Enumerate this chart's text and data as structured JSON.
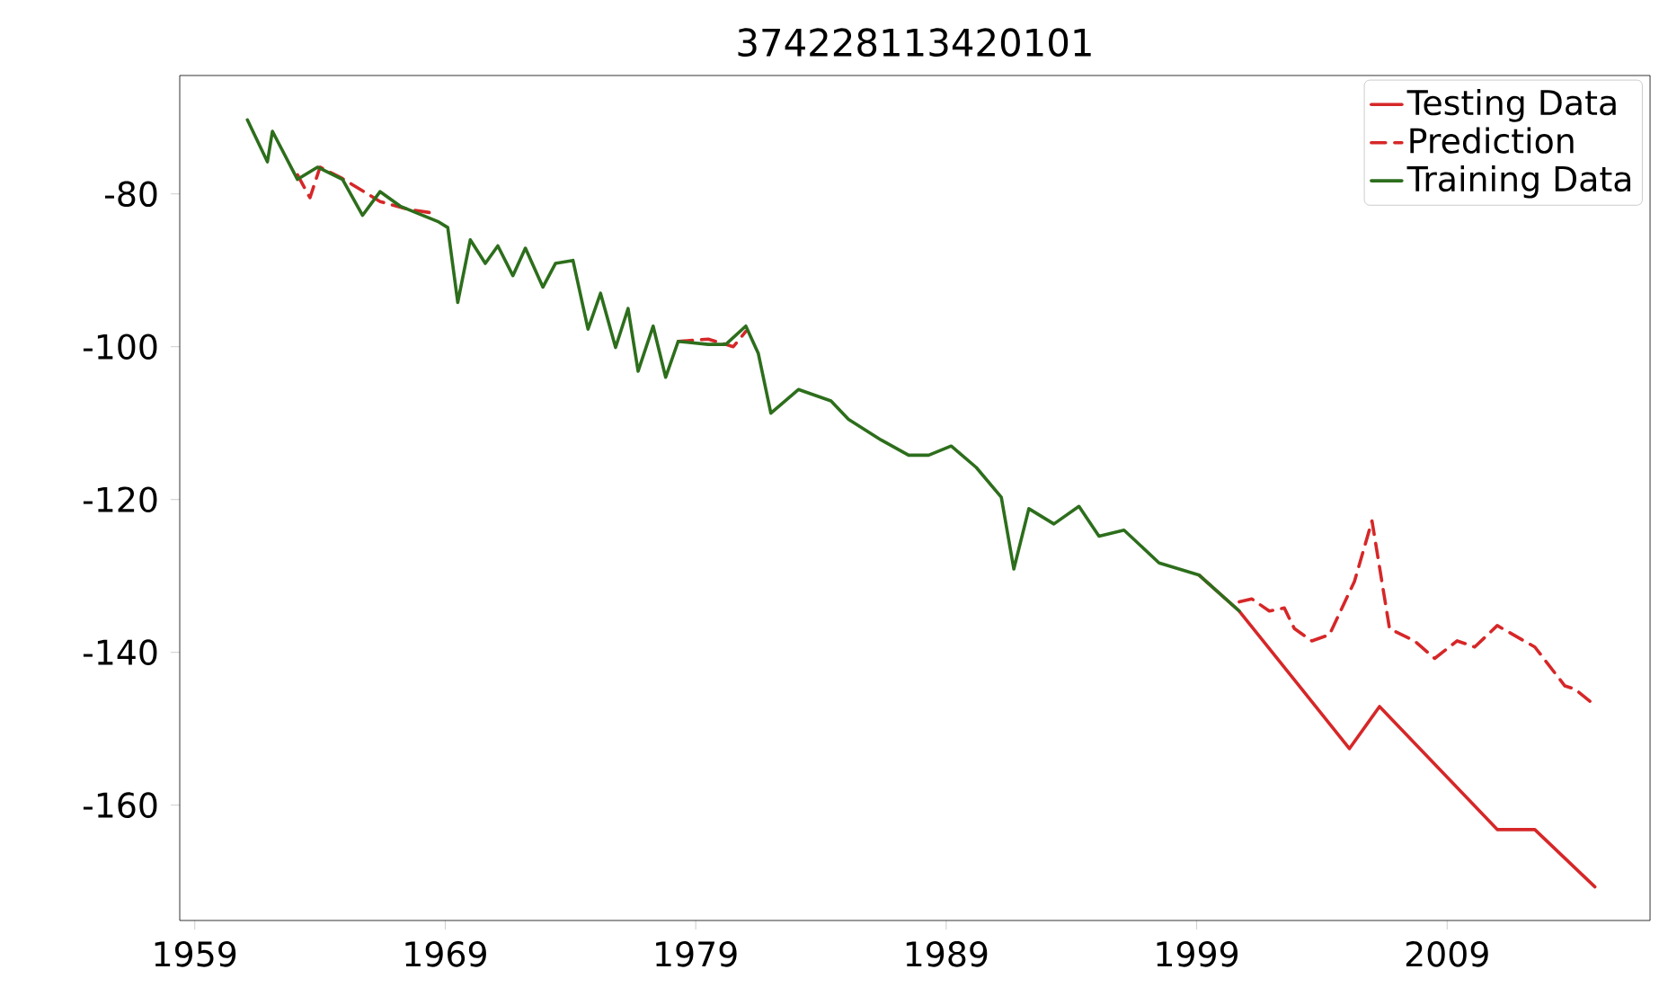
{
  "chart_data": {
    "type": "line",
    "title": "374228113420101",
    "xlim": [
      1958.4,
      2017.1
    ],
    "ylim": [
      -175.1,
      -64.5
    ],
    "xticks": [
      1959,
      1969,
      1979,
      1989,
      1999,
      2009
    ],
    "yticks": [
      -160,
      -140,
      -120,
      -100,
      -80
    ],
    "grid": false,
    "legend": "top right",
    "marker": "none",
    "series": [
      {
        "name": "Testing Data",
        "color": "#d62728",
        "line_style": "solid",
        "x": [
          1999.1,
          2000.7,
          2005.1,
          2006.3,
          2011.0,
          2012.5,
          2014.9
        ],
        "values": [
          -129.9,
          -134.6,
          -152.6,
          -147.1,
          -163.2,
          -163.2,
          -170.7
        ]
      },
      {
        "name": "Prediction",
        "color": "#d62728",
        "line_style": "dashed",
        "x": [
          1963.1,
          1963.6,
          1964.0,
          1964.9,
          1966.4,
          1967.5,
          1968.5,
          1973.0,
          1978.3,
          1979.5,
          1980.5,
          1981.0,
          1990.0,
          2000.7,
          2001.2,
          2001.9,
          2002.5,
          2002.9,
          2003.6,
          2004.3,
          2005.3,
          2006.0,
          2006.7,
          2007.7,
          2008.5,
          2009.4,
          2010.1,
          2011.0,
          2012.5,
          2013.7,
          2014.1,
          2014.7
        ],
        "values": [
          -77.5,
          -80.5,
          -76.5,
          -78.0,
          -81.0,
          -82.0,
          -82.5,
          null,
          -99.3,
          -99.0,
          -100.0,
          -98.0,
          null,
          -133.4,
          -133.0,
          -134.6,
          -134.2,
          -136.9,
          -138.5,
          -137.7,
          -130.7,
          -122.8,
          -136.9,
          -138.5,
          -140.8,
          -138.5,
          -139.3,
          -136.5,
          -139.3,
          -144.4,
          -144.8,
          -146.4
        ]
      },
      {
        "name": "Training Data",
        "color": "#2d6e1c",
        "line_style": "solid",
        "x": [
          1961.1,
          1961.9,
          1962.1,
          1963.1,
          1963.9,
          1964.9,
          1965.7,
          1966.4,
          1967.2,
          1968.7,
          1969.1,
          1969.5,
          1970.0,
          1970.6,
          1971.1,
          1971.7,
          1972.2,
          1972.9,
          1973.4,
          1974.1,
          1974.7,
          1975.2,
          1975.8,
          1976.3,
          1976.7,
          1977.3,
          1977.8,
          1978.3,
          1979.5,
          1980.2,
          1981.0,
          1981.5,
          1982.0,
          1983.1,
          1984.4,
          1985.1,
          1986.4,
          1987.5,
          1988.3,
          1989.2,
          1990.2,
          1991.2,
          1991.7,
          1992.3,
          1993.3,
          1994.3,
          1995.1,
          1996.1,
          1997.5,
          1999.1,
          2000.7
        ],
        "values": [
          -70.3,
          -75.8,
          -71.8,
          -78.1,
          -76.5,
          -78.1,
          -82.8,
          -79.7,
          -81.6,
          -83.6,
          -84.4,
          -94.2,
          -86.0,
          -89.1,
          -86.8,
          -90.7,
          -87.1,
          -92.2,
          -89.1,
          -88.7,
          -97.7,
          -93.0,
          -100.1,
          -95.0,
          -103.2,
          -97.3,
          -104.0,
          -99.3,
          -99.7,
          -99.7,
          -97.3,
          -100.9,
          -108.7,
          -105.6,
          -107.1,
          -109.5,
          -112.2,
          -114.2,
          -114.2,
          -113.0,
          -115.8,
          -119.7,
          -129.1,
          -121.2,
          -123.2,
          -120.9,
          -124.8,
          -124.0,
          -128.3,
          -129.9,
          -134.6
        ]
      }
    ]
  }
}
